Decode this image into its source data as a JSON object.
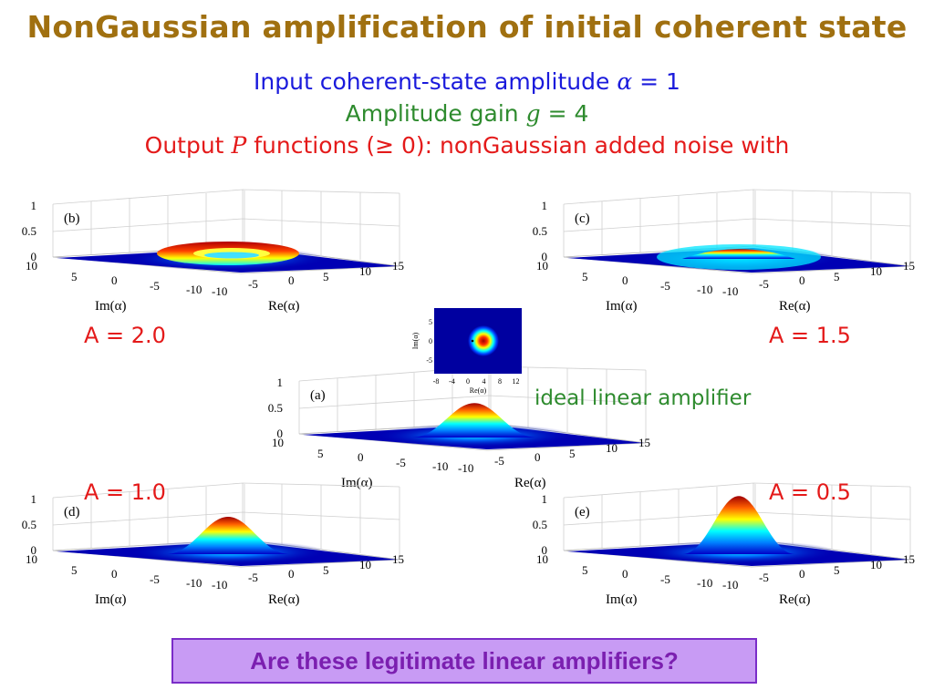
{
  "title": "NonGaussian amplification of initial coherent state",
  "subtitle1": {
    "text": "Input coherent-state amplitude",
    "var": "α",
    "value": "= 1"
  },
  "subtitle2": {
    "text": "Amplitude gain",
    "var": "g",
    "value": "= 4"
  },
  "subtitle3": {
    "prefix": "Output",
    "var": "P",
    "suffix": "functions (≥ 0):  nonGaussian added noise with"
  },
  "ideal_label": "ideal linear amplifier",
  "question": "Are these legitimate linear amplifiers?",
  "axes": {
    "xlabel": "Re(α)",
    "ylabel": "Im(α)",
    "x_ticks": [
      "-10",
      "-5",
      "0",
      "5",
      "10",
      "15"
    ],
    "y_ticks": [
      "10",
      "5",
      "0",
      "-5",
      "-10"
    ],
    "z_ticks": [
      "1",
      "0.5",
      "0"
    ]
  },
  "inset": {
    "xlabel": "Re(α)",
    "ylabel": "Im(α)",
    "x_ticks": [
      "-8",
      "-4",
      "0",
      "4",
      "8",
      "12"
    ],
    "y_ticks": [
      "5",
      "0",
      "-5"
    ]
  },
  "colors": {
    "title": "#a07010",
    "blue": "#1a1adc",
    "green": "#2e8b2e",
    "red": "#e41a1a",
    "box_bg": "#c89bf4",
    "box_text": "#7b1fb0"
  },
  "chart_data": [
    {
      "type": "surface",
      "panel": "(a)",
      "A_label": "",
      "shape": "gaussian",
      "peak": 0.55
    },
    {
      "type": "surface",
      "panel": "(b)",
      "A_label": "A = 2.0",
      "shape": "ring",
      "peak": 0.25
    },
    {
      "type": "surface",
      "panel": "(c)",
      "A_label": "A = 1.5",
      "shape": "flat-top",
      "peak": 0.3
    },
    {
      "type": "surface",
      "panel": "(d)",
      "A_label": "A = 1.0",
      "shape": "gaussian",
      "peak": 0.6
    },
    {
      "type": "surface",
      "panel": "(e)",
      "A_label": "A = 0.5",
      "shape": "gaussian",
      "peak": 0.95
    }
  ]
}
